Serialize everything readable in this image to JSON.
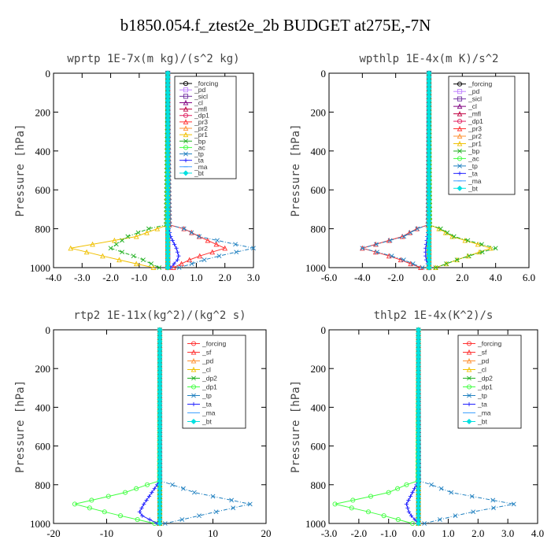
{
  "page_title": "b1850.054.f_ztest2e_2b  BUDGET at275E,-7N",
  "chart_data": [
    {
      "type": "line",
      "title": "wprtp  1E-7x(m kg)/(s^2 kg)",
      "ylabel": "Pressure [hPa]",
      "xlim": [
        -4.0,
        3.0
      ],
      "ylim": [
        1000,
        0
      ],
      "xticks": [
        -4.0,
        -3.0,
        -2.0,
        -1.0,
        0.0,
        1.0,
        2.0,
        3.0
      ],
      "xtick_labels": [
        "-4.0",
        "-3.0",
        "-2.0",
        "-1.0",
        "0.0",
        "1.0",
        "2.0",
        "3.0"
      ],
      "yticks": [
        0,
        200,
        400,
        600,
        800,
        1000
      ],
      "ytick_labels": [
        "0",
        "200",
        "400",
        "600",
        "800",
        "1000"
      ],
      "legend_position": "top-right",
      "series": [
        {
          "name": "_forcing",
          "color": "#000000",
          "marker": "o",
          "profile": [
            0.0,
            0.0,
            0.0,
            0.0,
            0.0
          ]
        },
        {
          "name": "_pd",
          "color": "#c080ff",
          "marker": "s",
          "profile": [
            0.0,
            0.0,
            0.0,
            0.0,
            0.0
          ]
        },
        {
          "name": "_sicl",
          "color": "#7030a0",
          "marker": "s",
          "profile": [
            0.0,
            0.0,
            0.0,
            0.0,
            0.0
          ]
        },
        {
          "name": "_cl",
          "color": "#800080",
          "marker": "tri",
          "profile": [
            0.0,
            0.0,
            0.0,
            0.0,
            0.0
          ]
        },
        {
          "name": "_mfl",
          "color": "#c00040",
          "marker": "tri",
          "profile": [
            0.0,
            0.0,
            0.0,
            0.0,
            0.0
          ]
        },
        {
          "name": "_dp1",
          "color": "#e02060",
          "marker": "o",
          "profile": [
            0.0,
            0.0,
            0.0,
            0.0,
            0.0
          ]
        },
        {
          "name": "_pr3",
          "color": "#ff3030",
          "marker": "tri",
          "profile": [
            0.3,
            1.1,
            2.0,
            0.9,
            0.2
          ]
        },
        {
          "name": "_pr2",
          "color": "#ff9030",
          "marker": "tri",
          "profile": [
            0.0,
            0.0,
            0.0,
            0.0,
            0.0
          ]
        },
        {
          "name": "_pr1",
          "color": "#f0c000",
          "marker": "tri",
          "profile": [
            0.0,
            -1.1,
            -3.4,
            -2.0,
            -0.5
          ]
        },
        {
          "name": "_bp",
          "color": "#20b020",
          "marker": "x",
          "profile": [
            -0.3,
            -1.4,
            -2.0,
            -1.0,
            -0.3
          ]
        },
        {
          "name": "_ac",
          "color": "#40ff40",
          "marker": "o",
          "profile": [
            0.0,
            0.0,
            0.0,
            0.0,
            0.0
          ]
        },
        {
          "name": "_tp",
          "color": "#2080c0",
          "marker": "x",
          "profile": [
            0.3,
            1.1,
            3.0,
            1.5,
            0.4
          ]
        },
        {
          "name": "_ta",
          "color": "#2020ff",
          "marker": "+",
          "profile": [
            0.0,
            0.1,
            0.3,
            0.4,
            0.1
          ]
        },
        {
          "name": "_ma",
          "color": "#40a0ff",
          "marker": "dash",
          "profile": [
            0.0,
            0.0,
            0.0,
            0.0,
            0.0
          ]
        },
        {
          "name": "_bt",
          "color": "#00e0e0",
          "marker": "diamond",
          "profile": [
            0.0,
            0.0,
            0.0,
            0.0,
            0.0
          ]
        }
      ]
    },
    {
      "type": "line",
      "title": "wpthlp  1E-4x(m K)/s^2",
      "ylabel": "Pressure [hPa]",
      "xlim": [
        -6.0,
        6.0
      ],
      "ylim": [
        1000,
        0
      ],
      "xticks": [
        -6.0,
        -4.0,
        -2.0,
        0.0,
        2.0,
        4.0,
        6.0
      ],
      "xtick_labels": [
        "-6.0",
        "-4.0",
        "-2.0",
        "0.0",
        "2.0",
        "4.0",
        "6.0"
      ],
      "yticks": [
        0,
        200,
        400,
        600,
        800,
        1000
      ],
      "ytick_labels": [
        "0",
        "200",
        "400",
        "600",
        "800",
        "1000"
      ],
      "legend_position": "top-right",
      "series": [
        {
          "name": "_forcing",
          "color": "#000000",
          "marker": "o",
          "profile": [
            0.0,
            0.0,
            0.0,
            0.0,
            0.0
          ]
        },
        {
          "name": "_pd",
          "color": "#c080ff",
          "marker": "s",
          "profile": [
            0.0,
            0.0,
            0.0,
            0.0,
            0.0
          ]
        },
        {
          "name": "_sicl",
          "color": "#7030a0",
          "marker": "s",
          "profile": [
            0.0,
            0.0,
            0.0,
            0.0,
            0.0
          ]
        },
        {
          "name": "_cl",
          "color": "#800080",
          "marker": "tri",
          "profile": [
            0.0,
            0.0,
            0.0,
            0.0,
            0.0
          ]
        },
        {
          "name": "_mfl",
          "color": "#c00040",
          "marker": "tri",
          "profile": [
            0.0,
            0.0,
            0.0,
            0.0,
            0.0
          ]
        },
        {
          "name": "_dp1",
          "color": "#e02060",
          "marker": "o",
          "profile": [
            0.0,
            0.0,
            0.0,
            0.0,
            0.0
          ]
        },
        {
          "name": "_pr3",
          "color": "#ff3030",
          "marker": "tri",
          "profile": [
            -0.3,
            -1.6,
            -4.0,
            -2.0,
            -0.5
          ]
        },
        {
          "name": "_pr2",
          "color": "#ff9030",
          "marker": "tri",
          "profile": [
            0.0,
            0.0,
            0.0,
            0.0,
            0.0
          ]
        },
        {
          "name": "_pr1",
          "color": "#f0c000",
          "marker": "tri",
          "profile": [
            0.2,
            1.4,
            3.7,
            2.0,
            0.4
          ]
        },
        {
          "name": "_bp",
          "color": "#20b020",
          "marker": "x",
          "profile": [
            0.3,
            1.5,
            4.0,
            2.0,
            0.4
          ]
        },
        {
          "name": "_ac",
          "color": "#40ff40",
          "marker": "o",
          "profile": [
            0.0,
            0.0,
            0.0,
            0.0,
            0.0
          ]
        },
        {
          "name": "_tp",
          "color": "#2080c0",
          "marker": "x",
          "profile": [
            -0.3,
            -1.5,
            -4.0,
            -1.8,
            -0.4
          ]
        },
        {
          "name": "_ta",
          "color": "#2020ff",
          "marker": "+",
          "profile": [
            0.0,
            -0.1,
            -0.2,
            -0.2,
            0.0
          ]
        },
        {
          "name": "_ma",
          "color": "#40a0ff",
          "marker": "dash",
          "profile": [
            0.0,
            0.0,
            0.0,
            0.0,
            0.0
          ]
        },
        {
          "name": "_bt",
          "color": "#00e0e0",
          "marker": "diamond",
          "profile": [
            0.0,
            0.0,
            0.0,
            0.0,
            0.0
          ]
        }
      ]
    },
    {
      "type": "line",
      "title": "rtp2  1E-11x(kg^2)/(kg^2 s)",
      "ylabel": "Pressure [hPa]",
      "xlim": [
        -20,
        20
      ],
      "ylim": [
        1000,
        0
      ],
      "xticks": [
        -20,
        -10,
        0,
        10,
        20
      ],
      "xtick_labels": [
        "-20",
        "-10",
        "0",
        "10",
        "20"
      ],
      "yticks": [
        0,
        200,
        400,
        600,
        800,
        1000
      ],
      "ytick_labels": [
        "0",
        "200",
        "400",
        "600",
        "800",
        "1000"
      ],
      "legend_position": "top-right",
      "series": [
        {
          "name": "_forcing",
          "color": "#ff3030",
          "marker": "o",
          "profile": [
            0.0,
            0.0,
            0.0,
            0.0,
            0.0
          ]
        },
        {
          "name": "_sf",
          "color": "#ff3030",
          "marker": "tri",
          "profile": [
            0.0,
            0.0,
            0.0,
            0.0,
            0.0
          ]
        },
        {
          "name": "_pd",
          "color": "#ff9030",
          "marker": "tri",
          "profile": [
            0.0,
            0.0,
            0.0,
            0.0,
            0.0
          ]
        },
        {
          "name": "_cl",
          "color": "#f0c000",
          "marker": "tri",
          "profile": [
            0.0,
            0.0,
            0.0,
            0.0,
            0.0
          ]
        },
        {
          "name": "_dp2",
          "color": "#20b020",
          "marker": "x",
          "profile": [
            0.0,
            0.0,
            0.0,
            0.0,
            0.0
          ]
        },
        {
          "name": "_dp1",
          "color": "#40ff40",
          "marker": "o",
          "profile": [
            -0.3,
            -6.5,
            -16.0,
            -9.0,
            -1.0
          ]
        },
        {
          "name": "_tp",
          "color": "#2080c0",
          "marker": "x",
          "profile": [
            0.3,
            6.5,
            17.0,
            9.0,
            1.0
          ]
        },
        {
          "name": "_ta",
          "color": "#2020ff",
          "marker": "+",
          "profile": [
            0.0,
            -1.5,
            -3.0,
            -4.0,
            -0.5
          ]
        },
        {
          "name": "_ma",
          "color": "#40a0ff",
          "marker": "dash",
          "profile": [
            0.0,
            0.0,
            0.0,
            0.0,
            0.0
          ]
        },
        {
          "name": "_bt",
          "color": "#00e0e0",
          "marker": "diamond",
          "profile": [
            0.0,
            0.0,
            0.0,
            0.0,
            0.0
          ]
        }
      ]
    },
    {
      "type": "line",
      "title": "thlp2  1E-4x(K^2)/s",
      "ylabel": "Pressure [hPa]",
      "xlim": [
        -3.0,
        4.0
      ],
      "ylim": [
        1000,
        0
      ],
      "xticks": [
        -3.0,
        -2.0,
        -1.0,
        0.0,
        1.0,
        2.0,
        3.0,
        4.0
      ],
      "xtick_labels": [
        "-3.0",
        "-2.0",
        "-1.0",
        "0.0",
        "1.0",
        "2.0",
        "3.0",
        "4.0"
      ],
      "yticks": [
        0,
        200,
        400,
        600,
        800,
        1000
      ],
      "ytick_labels": [
        "0",
        "200",
        "400",
        "600",
        "800",
        "1000"
      ],
      "legend_position": "top-right",
      "series": [
        {
          "name": "_forcing",
          "color": "#ff3030",
          "marker": "o",
          "profile": [
            0.0,
            0.0,
            0.0,
            0.0,
            0.0
          ]
        },
        {
          "name": "_sf",
          "color": "#ff3030",
          "marker": "tri",
          "profile": [
            0.0,
            0.0,
            0.0,
            0.0,
            0.0
          ]
        },
        {
          "name": "_pd",
          "color": "#ff9030",
          "marker": "tri",
          "profile": [
            0.0,
            0.0,
            0.0,
            0.0,
            0.0
          ]
        },
        {
          "name": "_cl",
          "color": "#f0c000",
          "marker": "tri",
          "profile": [
            0.0,
            0.0,
            0.0,
            0.0,
            0.0
          ]
        },
        {
          "name": "_dp2",
          "color": "#20b020",
          "marker": "x",
          "profile": [
            0.0,
            0.0,
            0.0,
            0.0,
            0.0
          ]
        },
        {
          "name": "_dp1",
          "color": "#40ff40",
          "marker": "o",
          "profile": [
            -0.1,
            -1.0,
            -2.8,
            -1.4,
            -0.2
          ]
        },
        {
          "name": "_tp",
          "color": "#2080c0",
          "marker": "x",
          "profile": [
            0.1,
            1.1,
            3.2,
            1.5,
            0.2
          ]
        },
        {
          "name": "_ta",
          "color": "#2020ff",
          "marker": "+",
          "profile": [
            0.0,
            -0.2,
            -0.4,
            -0.3,
            0.0
          ]
        },
        {
          "name": "_ma",
          "color": "#40a0ff",
          "marker": "dash",
          "profile": [
            0.0,
            0.0,
            0.0,
            0.0,
            0.0
          ]
        },
        {
          "name": "_bt",
          "color": "#00e0e0",
          "marker": "diamond",
          "profile": [
            0.0,
            0.0,
            0.0,
            0.0,
            0.0
          ]
        }
      ]
    }
  ]
}
